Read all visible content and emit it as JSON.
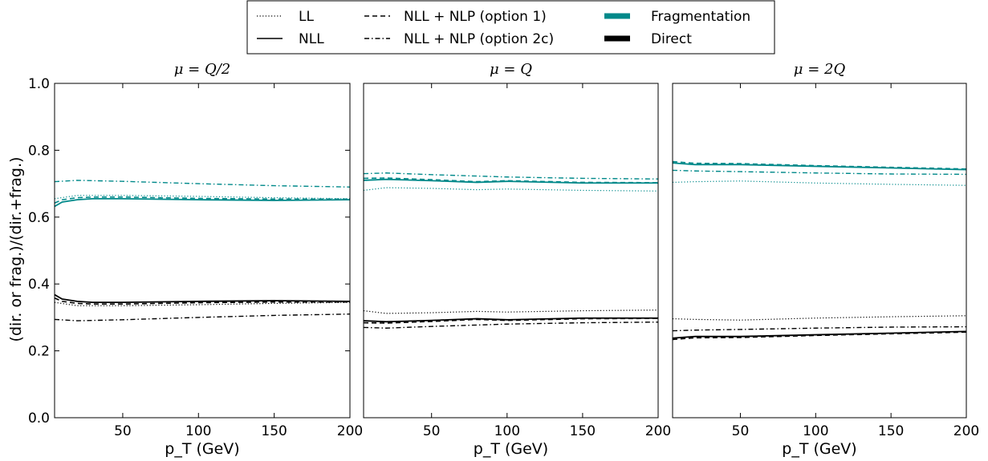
{
  "colors": {
    "fragmentation": "#00898a",
    "direct": "#000000"
  },
  "legend": {
    "placement": "top-center",
    "entries": [
      {
        "label": "LL",
        "style": "dotted"
      },
      {
        "label": "NLL",
        "style": "solid"
      },
      {
        "label": "NLL + NLP (option 1)",
        "style": "dashed"
      },
      {
        "label": "NLL + NLP (option 2c)",
        "style": "dashdot"
      },
      {
        "label": "Fragmentation",
        "style": "thick",
        "color": "#00898a"
      },
      {
        "label": "Direct",
        "style": "thick",
        "color": "#000000"
      }
    ]
  },
  "chart_data": [
    {
      "type": "line",
      "title": "μ = Q/2",
      "xlabel": "p_T (GeV)",
      "ylabel": "(dir. or frag.)/(dir.+frag.)",
      "xlim": [
        5,
        200
      ],
      "ylim": [
        0.0,
        1.0
      ],
      "xticks": [
        50,
        100,
        150,
        200
      ],
      "yticks": [
        0.0,
        0.2,
        0.4,
        0.6,
        0.8,
        1.0
      ],
      "grid": false,
      "series": [
        {
          "name": "LL",
          "group": "fragmentation",
          "style": "dotted",
          "x": [
            5,
            20,
            50,
            100,
            150,
            200
          ],
          "y": [
            0.655,
            0.665,
            0.665,
            0.662,
            0.658,
            0.655
          ]
        },
        {
          "name": "NLL",
          "group": "fragmentation",
          "style": "solid",
          "x": [
            5,
            10,
            20,
            30,
            50,
            100,
            150,
            200
          ],
          "y": [
            0.632,
            0.645,
            0.652,
            0.655,
            0.655,
            0.652,
            0.65,
            0.652
          ]
        },
        {
          "name": "NLL + NLP (option 1)",
          "group": "fragmentation",
          "style": "dashed",
          "x": [
            5,
            10,
            20,
            30,
            50,
            100,
            150,
            200
          ],
          "y": [
            0.642,
            0.652,
            0.658,
            0.66,
            0.66,
            0.656,
            0.654,
            0.654
          ]
        },
        {
          "name": "NLL + NLP (option 2c)",
          "group": "fragmentation",
          "style": "dashdot",
          "x": [
            5,
            20,
            50,
            100,
            150,
            200
          ],
          "y": [
            0.706,
            0.71,
            0.707,
            0.7,
            0.694,
            0.69
          ]
        },
        {
          "name": "LL",
          "group": "direct",
          "style": "dotted",
          "x": [
            5,
            20,
            50,
            100,
            150,
            200
          ],
          "y": [
            0.345,
            0.335,
            0.335,
            0.338,
            0.342,
            0.345
          ]
        },
        {
          "name": "NLL",
          "group": "direct",
          "style": "solid",
          "x": [
            5,
            10,
            20,
            30,
            50,
            100,
            150,
            200
          ],
          "y": [
            0.368,
            0.355,
            0.348,
            0.345,
            0.345,
            0.348,
            0.35,
            0.348
          ]
        },
        {
          "name": "NLL + NLP (option 1)",
          "group": "direct",
          "style": "dashed",
          "x": [
            5,
            10,
            20,
            30,
            50,
            100,
            150,
            200
          ],
          "y": [
            0.358,
            0.348,
            0.342,
            0.34,
            0.34,
            0.344,
            0.346,
            0.346
          ]
        },
        {
          "name": "NLL + NLP (option 2c)",
          "group": "direct",
          "style": "dashdot",
          "x": [
            5,
            20,
            50,
            100,
            150,
            200
          ],
          "y": [
            0.294,
            0.29,
            0.293,
            0.3,
            0.306,
            0.31
          ]
        }
      ]
    },
    {
      "type": "line",
      "title": "μ = Q",
      "xlabel": "p_T (GeV)",
      "ylabel": "",
      "xlim": [
        5,
        200
      ],
      "ylim": [
        0.0,
        1.0
      ],
      "xticks": [
        50,
        100,
        150,
        200
      ],
      "yticks": [],
      "grid": false,
      "series": [
        {
          "name": "LL",
          "group": "fragmentation",
          "style": "dotted",
          "x": [
            5,
            20,
            50,
            80,
            100,
            150,
            200
          ],
          "y": [
            0.68,
            0.688,
            0.686,
            0.682,
            0.684,
            0.68,
            0.678
          ]
        },
        {
          "name": "NLL",
          "group": "fragmentation",
          "style": "solid",
          "x": [
            5,
            20,
            50,
            80,
            100,
            150,
            200
          ],
          "y": [
            0.71,
            0.713,
            0.709,
            0.704,
            0.707,
            0.702,
            0.702
          ]
        },
        {
          "name": "NLL + NLP (option 1)",
          "group": "fragmentation",
          "style": "dashed",
          "x": [
            5,
            20,
            50,
            80,
            100,
            150,
            200
          ],
          "y": [
            0.716,
            0.717,
            0.712,
            0.706,
            0.709,
            0.704,
            0.703
          ]
        },
        {
          "name": "NLL + NLP (option 2c)",
          "group": "fragmentation",
          "style": "dashdot",
          "x": [
            5,
            20,
            50,
            100,
            150,
            200
          ],
          "y": [
            0.73,
            0.732,
            0.727,
            0.72,
            0.716,
            0.714
          ]
        },
        {
          "name": "LL",
          "group": "direct",
          "style": "dotted",
          "x": [
            5,
            20,
            50,
            80,
            100,
            150,
            200
          ],
          "y": [
            0.32,
            0.312,
            0.314,
            0.318,
            0.316,
            0.32,
            0.322
          ]
        },
        {
          "name": "NLL",
          "group": "direct",
          "style": "solid",
          "x": [
            5,
            20,
            50,
            80,
            100,
            150,
            200
          ],
          "y": [
            0.29,
            0.287,
            0.291,
            0.296,
            0.293,
            0.298,
            0.298
          ]
        },
        {
          "name": "NLL + NLP (option 1)",
          "group": "direct",
          "style": "dashed",
          "x": [
            5,
            20,
            50,
            80,
            100,
            150,
            200
          ],
          "y": [
            0.284,
            0.283,
            0.288,
            0.294,
            0.291,
            0.296,
            0.297
          ]
        },
        {
          "name": "NLL + NLP (option 2c)",
          "group": "direct",
          "style": "dashdot",
          "x": [
            5,
            20,
            50,
            100,
            150,
            200
          ],
          "y": [
            0.27,
            0.268,
            0.273,
            0.28,
            0.284,
            0.286
          ]
        }
      ]
    },
    {
      "type": "line",
      "title": "μ = 2Q",
      "xlabel": "p_T (GeV)",
      "ylabel": "",
      "xlim": [
        5,
        200
      ],
      "ylim": [
        0.0,
        1.0
      ],
      "xticks": [
        50,
        100,
        150,
        200
      ],
      "yticks": [],
      "grid": false,
      "series": [
        {
          "name": "LL",
          "group": "fragmentation",
          "style": "dotted",
          "x": [
            5,
            20,
            50,
            100,
            150,
            200
          ],
          "y": [
            0.704,
            0.706,
            0.708,
            0.702,
            0.698,
            0.695
          ]
        },
        {
          "name": "NLL",
          "group": "fragmentation",
          "style": "solid",
          "x": [
            5,
            20,
            50,
            100,
            150,
            200
          ],
          "y": [
            0.762,
            0.757,
            0.757,
            0.752,
            0.747,
            0.742
          ]
        },
        {
          "name": "NLL + NLP (option 1)",
          "group": "fragmentation",
          "style": "dashed",
          "x": [
            5,
            20,
            50,
            100,
            150,
            200
          ],
          "y": [
            0.766,
            0.761,
            0.76,
            0.754,
            0.749,
            0.744
          ]
        },
        {
          "name": "NLL + NLP (option 2c)",
          "group": "fragmentation",
          "style": "dashdot",
          "x": [
            5,
            20,
            50,
            100,
            150,
            200
          ],
          "y": [
            0.74,
            0.738,
            0.736,
            0.732,
            0.729,
            0.728
          ]
        },
        {
          "name": "LL",
          "group": "direct",
          "style": "dotted",
          "x": [
            5,
            20,
            50,
            100,
            150,
            200
          ],
          "y": [
            0.296,
            0.294,
            0.292,
            0.298,
            0.302,
            0.305
          ]
        },
        {
          "name": "NLL",
          "group": "direct",
          "style": "solid",
          "x": [
            5,
            20,
            50,
            100,
            150,
            200
          ],
          "y": [
            0.238,
            0.243,
            0.243,
            0.248,
            0.253,
            0.258
          ]
        },
        {
          "name": "NLL + NLP (option 1)",
          "group": "direct",
          "style": "dashed",
          "x": [
            5,
            20,
            50,
            100,
            150,
            200
          ],
          "y": [
            0.234,
            0.239,
            0.24,
            0.246,
            0.251,
            0.256
          ]
        },
        {
          "name": "NLL + NLP (option 2c)",
          "group": "direct",
          "style": "dashdot",
          "x": [
            5,
            20,
            50,
            100,
            150,
            200
          ],
          "y": [
            0.26,
            0.262,
            0.264,
            0.268,
            0.271,
            0.272
          ]
        }
      ]
    }
  ]
}
